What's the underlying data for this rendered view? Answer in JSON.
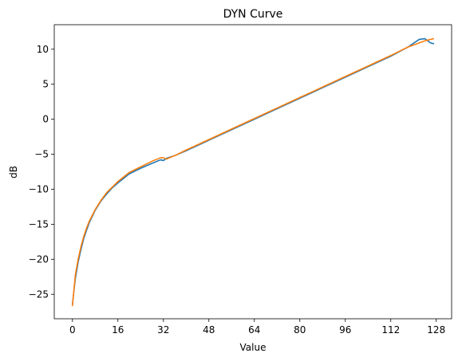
{
  "chart_data": {
    "type": "line",
    "title": "DYN Curve",
    "xlabel": "Value",
    "ylabel": "dB",
    "xlim": [
      -6.4,
      133.4
    ],
    "ylim": [
      -28.5,
      13.5
    ],
    "xticks": [
      0,
      16,
      32,
      48,
      64,
      80,
      96,
      112,
      128
    ],
    "yticks": [
      -25,
      -20,
      -15,
      -10,
      -5,
      0,
      5,
      10
    ],
    "grid": false,
    "legend": "none",
    "series": [
      {
        "color": "#1f77b4",
        "x": [
          0,
          1,
          2,
          3,
          4,
          5,
          6,
          8,
          10,
          12,
          14,
          16,
          20,
          24,
          28,
          31,
          32,
          33,
          36,
          40,
          48,
          56,
          64,
          72,
          80,
          88,
          96,
          104,
          112,
          118,
          122,
          124,
          125,
          126,
          127
        ],
        "y": [
          -26.4,
          -22.8,
          -20.4,
          -18.6,
          -17.0,
          -15.8,
          -14.7,
          -13.0,
          -11.7,
          -10.7,
          -9.8,
          -9.1,
          -7.8,
          -7.0,
          -6.3,
          -5.8,
          -5.9,
          -5.6,
          -5.2,
          -4.5,
          -3.0,
          -1.5,
          0.0,
          1.5,
          3.0,
          4.5,
          6.0,
          7.5,
          9.0,
          10.3,
          11.4,
          11.5,
          11.2,
          10.9,
          10.8
        ]
      },
      {
        "color": "#ff7f0e",
        "x": [
          0,
          1,
          2,
          3,
          4,
          5,
          6,
          8,
          10,
          12,
          14,
          16,
          20,
          24,
          28,
          31,
          32,
          33,
          36,
          40,
          48,
          56,
          64,
          72,
          80,
          88,
          96,
          104,
          112,
          118,
          122,
          124,
          126,
          127
        ],
        "y": [
          -26.6,
          -22.3,
          -20.0,
          -18.2,
          -16.7,
          -15.5,
          -14.5,
          -12.9,
          -11.6,
          -10.5,
          -9.7,
          -8.9,
          -7.6,
          -6.8,
          -6.0,
          -5.5,
          -5.5,
          -5.7,
          -5.2,
          -4.4,
          -2.9,
          -1.4,
          0.1,
          1.6,
          3.1,
          4.6,
          6.1,
          7.6,
          9.1,
          10.3,
          10.9,
          11.2,
          11.4,
          11.5
        ]
      }
    ]
  }
}
